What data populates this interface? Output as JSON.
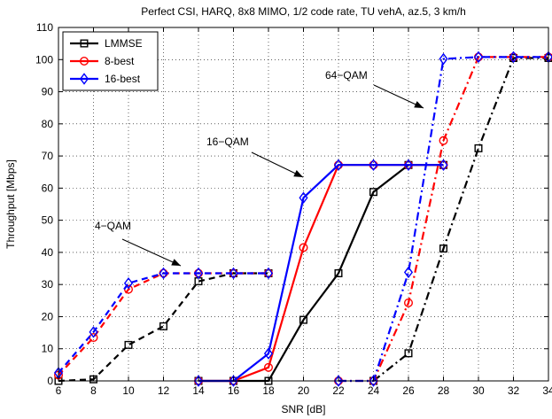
{
  "chart_data": {
    "type": "line",
    "title": "Perfect CSI, HARQ, 8x8 MIMO, 1/2 code rate, TU vehA, az.5, 3 km/h",
    "xlabel": "SNR [dB]",
    "ylabel": "Throughput [Mbps]",
    "xlim": [
      6,
      34
    ],
    "ylim": [
      0,
      110
    ],
    "xticks": [
      6,
      8,
      10,
      12,
      14,
      16,
      18,
      20,
      22,
      24,
      26,
      28,
      30,
      32,
      34
    ],
    "yticks": [
      0,
      10,
      20,
      30,
      40,
      50,
      60,
      70,
      80,
      90,
      100,
      110
    ],
    "grid": true,
    "legend_position": "top-left",
    "series": [
      {
        "name": "LMMSE",
        "color": "#000000",
        "marker": "square",
        "segments": [
          {
            "label": "4-QAM",
            "style": "dashed",
            "x": [
              6,
              8,
              10,
              12,
              14,
              16,
              18
            ],
            "y": [
              0,
              0.5,
              11.2,
              17,
              31,
              33.5,
              33.5
            ]
          },
          {
            "label": "16-QAM",
            "style": "solid",
            "x": [
              14,
              16,
              18,
              20,
              22,
              24,
              26,
              28
            ],
            "y": [
              0,
              0,
              0,
              19,
              33.5,
              58.8,
              67.2,
              67.2
            ]
          },
          {
            "label": "64-QAM",
            "style": "dashdot",
            "x": [
              24,
              26,
              28,
              30,
              32,
              34
            ],
            "y": [
              0,
              8.6,
              41.2,
              72.4,
              100.5,
              100.5
            ]
          }
        ]
      },
      {
        "name": "8-best",
        "color": "#ff0000",
        "marker": "circle",
        "segments": [
          {
            "label": "4-QAM",
            "style": "dashed",
            "x": [
              6,
              8,
              10,
              12,
              14,
              16,
              18
            ],
            "y": [
              1.8,
              13.5,
              28.5,
              33.5,
              33.5,
              33.5,
              33.5
            ]
          },
          {
            "label": "16-QAM",
            "style": "solid",
            "x": [
              14,
              16,
              18,
              20,
              22,
              24,
              26,
              28
            ],
            "y": [
              0,
              0,
              4.2,
              41.5,
              67.2,
              67.2,
              67.2,
              67.2
            ]
          },
          {
            "label": "64-QAM",
            "style": "dashdot",
            "x": [
              22,
              24,
              26,
              28,
              30,
              32,
              34
            ],
            "y": [
              0,
              0,
              24.3,
              74.8,
              100.8,
              100.8,
              100.8
            ]
          }
        ]
      },
      {
        "name": "16-best",
        "color": "#0000ff",
        "marker": "diamond",
        "segments": [
          {
            "label": "4-QAM",
            "style": "dashed",
            "x": [
              6,
              8,
              10,
              12,
              14,
              16,
              18
            ],
            "y": [
              2.5,
              15.2,
              30.4,
              33.5,
              33.5,
              33.5,
              33.5
            ]
          },
          {
            "label": "16-QAM",
            "style": "solid",
            "x": [
              14,
              16,
              18,
              20,
              22,
              24,
              26,
              28
            ],
            "y": [
              0,
              0,
              8.5,
              57,
              67.2,
              67.2,
              67.2,
              67.2
            ]
          },
          {
            "label": "64-QAM",
            "style": "dashdot",
            "x": [
              22,
              24,
              26,
              28,
              30,
              32,
              34
            ],
            "y": [
              0,
              0,
              33.8,
              100.2,
              100.8,
              100.8,
              100.8
            ]
          }
        ]
      }
    ],
    "annotations": [
      {
        "text": "4−QAM",
        "points_to": [
          14,
          33.5
        ]
      },
      {
        "text": "16−QAM",
        "points_to": [
          22,
          67.2
        ]
      },
      {
        "text": "64−QAM",
        "points_to": [
          28,
          100
        ]
      }
    ]
  }
}
